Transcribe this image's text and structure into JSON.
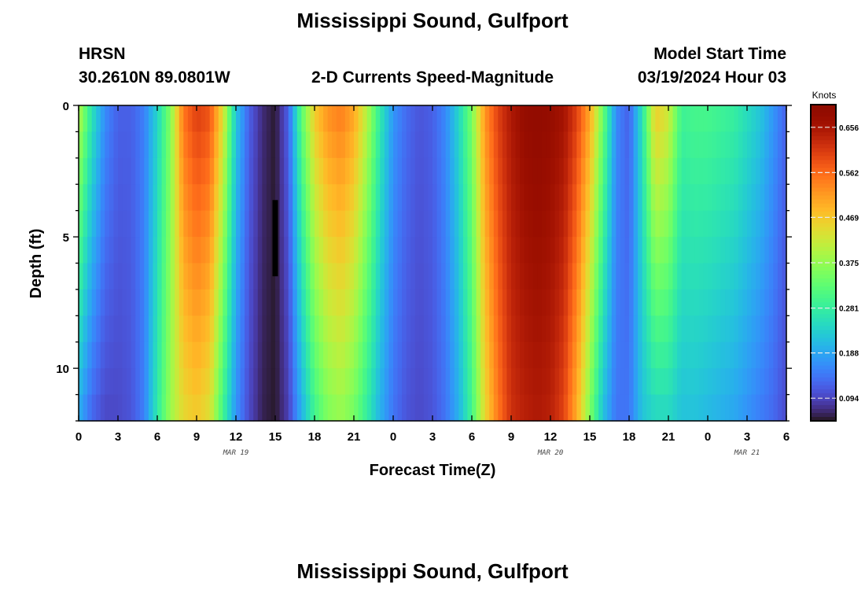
{
  "title": "Mississippi Sound, Gulfport",
  "header": {
    "station": "HRSN",
    "coordinates": "30.2610N  89.0801W",
    "subtitle": "2-D Currents Speed-Magnitude",
    "model_label": "Model Start Time",
    "model_time": "03/19/2024 Hour 03"
  },
  "footer_title": "Mississippi Sound, Gulfport",
  "chart_data": {
    "type": "heatmap",
    "title": "2-D Currents Speed-Magnitude",
    "xlabel": "Forecast Time(Z)",
    "ylabel": "Depth (ft)",
    "x_range_hours": [
      0,
      54
    ],
    "x_start": "03/19/2024 Hour 00",
    "x_step_hours": 1,
    "x_tick_labels": [
      "0",
      "3",
      "6",
      "9",
      "12",
      "15",
      "18",
      "21",
      "0",
      "3",
      "6",
      "9",
      "12",
      "15",
      "18",
      "21",
      "0",
      "3",
      "6"
    ],
    "date_labels": [
      {
        "text": "MAR 19",
        "hour": 12
      },
      {
        "text": "MAR 20",
        "hour": 36
      },
      {
        "text": "MAR 21",
        "hour": 51
      }
    ],
    "y_range_ft": [
      0,
      12
    ],
    "y_tick_labels": [
      "0",
      "5",
      "10"
    ],
    "y_reversed": true,
    "colorbar": {
      "unit": "Knots",
      "range": [
        0.047,
        0.703
      ],
      "tick_values": [
        0.094,
        0.188,
        0.281,
        0.375,
        0.469,
        0.562,
        0.656
      ],
      "tick_labels": [
        "0.094",
        "0.188",
        "0.281",
        "0.375",
        "0.469",
        "0.562",
        "0.656"
      ],
      "colormap": "turbo"
    },
    "depth_levels_ft": [
      0,
      1,
      2,
      3,
      4,
      5,
      6,
      7,
      8,
      9,
      10,
      11
    ],
    "speed_keypoints": {
      "hours": [
        0,
        1,
        2,
        3,
        4,
        5,
        6,
        7,
        8,
        9,
        10,
        11,
        12,
        13,
        14,
        15,
        16,
        17,
        18,
        19,
        20,
        21,
        22,
        23,
        24,
        25,
        26,
        27,
        28,
        29,
        30,
        31,
        32,
        33,
        34,
        35,
        36,
        37,
        38,
        39,
        40,
        41,
        42,
        43,
        44,
        45,
        46,
        47,
        48,
        49,
        50,
        51,
        52,
        53,
        54
      ],
      "surface_knots": [
        0.4,
        0.26,
        0.16,
        0.12,
        0.12,
        0.15,
        0.24,
        0.36,
        0.55,
        0.6,
        0.58,
        0.44,
        0.22,
        0.12,
        0.07,
        0.05,
        0.12,
        0.32,
        0.46,
        0.52,
        0.54,
        0.5,
        0.4,
        0.27,
        0.17,
        0.13,
        0.11,
        0.12,
        0.16,
        0.24,
        0.35,
        0.52,
        0.6,
        0.65,
        0.68,
        0.69,
        0.68,
        0.66,
        0.6,
        0.5,
        0.34,
        0.16,
        0.12,
        0.26,
        0.46,
        0.42,
        0.29,
        0.3,
        0.3,
        0.29,
        0.28,
        0.25,
        0.22,
        0.17,
        0.12
      ],
      "bottom_knots": [
        0.2,
        0.13,
        0.1,
        0.1,
        0.11,
        0.15,
        0.27,
        0.38,
        0.45,
        0.47,
        0.44,
        0.3,
        0.17,
        0.1,
        0.06,
        0.05,
        0.09,
        0.2,
        0.3,
        0.36,
        0.38,
        0.35,
        0.28,
        0.2,
        0.14,
        0.11,
        0.1,
        0.11,
        0.14,
        0.2,
        0.3,
        0.45,
        0.55,
        0.62,
        0.64,
        0.65,
        0.64,
        0.6,
        0.5,
        0.36,
        0.22,
        0.14,
        0.14,
        0.22,
        0.25,
        0.25,
        0.22,
        0.22,
        0.21,
        0.2,
        0.19,
        0.17,
        0.15,
        0.13,
        0.1
      ]
    },
    "missing_data": {
      "hour": 15,
      "depth_ft_range": [
        3.6,
        6.5
      ],
      "color": "#000000"
    }
  }
}
